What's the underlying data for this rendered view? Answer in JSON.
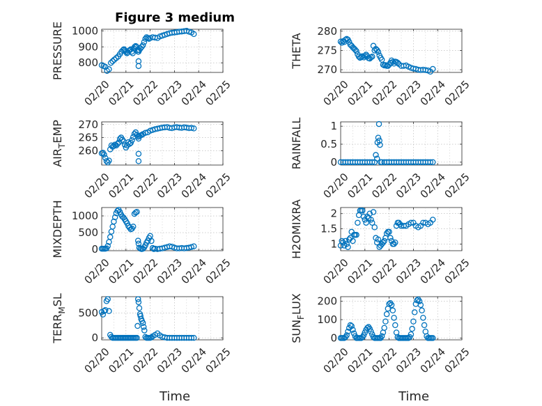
{
  "figure": {
    "title": "Figure 3 medium",
    "marker_color": "#0072BD"
  },
  "chart_data": [
    {
      "type": "scatter",
      "id": "pressure",
      "ylabel": "PRESSURE",
      "ylabel_main": "PRESSURE",
      "ylabel_sub": "",
      "ylabel_tail": "",
      "title": "Figure 3 medium",
      "xlim": [
        "02/20",
        "02/25"
      ],
      "xticks": [
        "02/20",
        "02/21",
        "02/22",
        "02/23",
        "02/24",
        "02/25"
      ],
      "ylim": [
        740,
        1010
      ],
      "yticks": [
        800,
        900,
        1000
      ],
      "grid": true,
      "x": [
        0,
        0.08,
        0.15,
        0.22,
        0.3,
        0.38,
        0.45,
        0.52,
        0.6,
        0.68,
        0.75,
        0.82,
        0.88,
        0.92,
        0.96,
        1.0,
        1.04,
        1.08,
        1.12,
        1.16,
        1.2,
        1.24,
        1.28,
        1.32,
        1.36,
        1.4,
        1.44,
        1.48,
        1.5,
        1.52,
        1.52,
        1.52,
        1.55,
        1.6,
        1.65,
        1.7,
        1.75,
        1.8,
        1.85,
        1.9,
        1.95,
        2.0,
        2.1,
        2.2,
        2.3,
        2.4,
        2.5,
        2.6,
        2.7,
        2.8,
        2.9,
        3.0,
        3.1,
        3.2,
        3.3,
        3.4,
        3.5,
        3.6,
        3.7,
        3.8
      ],
      "y": [
        785,
        780,
        775,
        750,
        760,
        800,
        810,
        820,
        830,
        840,
        855,
        870,
        880,
        885,
        878,
        870,
        860,
        865,
        875,
        880,
        885,
        870,
        860,
        890,
        900,
        905,
        900,
        880,
        870,
        780,
        810,
        870,
        880,
        890,
        900,
        910,
        930,
        950,
        960,
        955,
        950,
        955,
        960,
        958,
        955,
        965,
        970,
        975,
        980,
        985,
        988,
        990,
        992,
        995,
        996,
        998,
        1000,
        995,
        990,
        980
      ]
    },
    {
      "type": "scatter",
      "id": "theta",
      "ylabel": "THETA",
      "ylabel_main": "THETA",
      "ylabel_sub": "",
      "ylabel_tail": "",
      "xlim": [
        "02/20",
        "02/25"
      ],
      "xticks": [
        "02/20",
        "02/21",
        "02/22",
        "02/23",
        "02/24",
        "02/25"
      ],
      "ylim": [
        269.3,
        280.5
      ],
      "yticks": [
        270,
        275,
        280
      ],
      "grid": true,
      "x": [
        0,
        0.05,
        0.1,
        0.15,
        0.2,
        0.25,
        0.3,
        0.35,
        0.4,
        0.45,
        0.5,
        0.55,
        0.6,
        0.65,
        0.7,
        0.75,
        0.8,
        0.85,
        0.9,
        0.95,
        1.0,
        1.05,
        1.1,
        1.15,
        1.2,
        1.25,
        1.3,
        1.35,
        1.4,
        1.45,
        1.5,
        1.55,
        1.6,
        1.65,
        1.7,
        1.75,
        1.8,
        1.85,
        1.9,
        1.95,
        2.0,
        2.05,
        2.1,
        2.15,
        2.2,
        2.25,
        2.3,
        2.35,
        2.4,
        2.5,
        2.6,
        2.7,
        2.8,
        2.9,
        3.0,
        3.1,
        3.2,
        3.3,
        3.4,
        3.5,
        3.6,
        3.7,
        3.8
      ],
      "y": [
        277.3,
        277.0,
        277.4,
        277.2,
        277.8,
        278.0,
        277.8,
        277.2,
        276.5,
        276.2,
        275.8,
        275.5,
        275.2,
        274.8,
        274.0,
        273.4,
        273.1,
        273.3,
        273.5,
        273.2,
        273.6,
        273.9,
        273.5,
        273.0,
        272.9,
        273.2,
        273.4,
        276.2,
        275.0,
        275.4,
        275.1,
        274.6,
        273.7,
        273.1,
        272.6,
        271.3,
        271.1,
        271.2,
        271.0,
        271.0,
        271.3,
        271.8,
        272.4,
        272.0,
        271.6,
        272.1,
        272.0,
        271.8,
        271.5,
        271.0,
        271.0,
        271.1,
        270.8,
        270.5,
        270.3,
        270.2,
        270.0,
        269.9,
        270.0,
        269.9,
        269.8,
        269.5,
        270.2
      ]
    },
    {
      "type": "scatter",
      "id": "air_temp",
      "ylabel": "AIR_TEMP",
      "ylabel_main": "AIR",
      "ylabel_sub": "T",
      "ylabel_tail": "EMP",
      "xlim": [
        "02/20",
        "02/25"
      ],
      "xticks": [
        "02/20",
        "02/21",
        "02/22",
        "02/23",
        "02/24",
        "02/25"
      ],
      "ylim": [
        254.5,
        271.0
      ],
      "yticks": [
        260,
        265,
        270
      ],
      "grid": true,
      "x": [
        0,
        0.05,
        0.1,
        0.15,
        0.2,
        0.25,
        0.3,
        0.35,
        0.4,
        0.45,
        0.5,
        0.55,
        0.6,
        0.65,
        0.7,
        0.75,
        0.8,
        0.85,
        0.9,
        0.95,
        1.0,
        1.05,
        1.1,
        1.15,
        1.2,
        1.25,
        1.3,
        1.35,
        1.4,
        1.45,
        1.5,
        1.52,
        1.52,
        1.52,
        1.55,
        1.6,
        1.65,
        1.7,
        1.8,
        1.9,
        2.0,
        2.1,
        2.2,
        2.3,
        2.4,
        2.5,
        2.6,
        2.7,
        2.8,
        2.9,
        3.0,
        3.1,
        3.2,
        3.3,
        3.4,
        3.5,
        3.6,
        3.7,
        3.8
      ],
      "y": [
        259.0,
        259.2,
        258.5,
        257.2,
        256.0,
        255.5,
        256.2,
        260.5,
        262.0,
        261.5,
        261.8,
        262.3,
        262.0,
        262.6,
        263.1,
        264.5,
        265.0,
        264.2,
        263.5,
        262.3,
        261.2,
        262.0,
        263.2,
        262.6,
        263.0,
        264.0,
        265.2,
        266.4,
        267.0,
        266.0,
        265.3,
        256.0,
        258.8,
        264.6,
        265.5,
        265.8,
        266.0,
        266.3,
        266.8,
        267.0,
        267.6,
        267.9,
        268.2,
        268.4,
        268.6,
        268.8,
        268.9,
        269.0,
        268.7,
        268.6,
        268.9,
        269.0,
        268.8,
        268.7,
        268.9,
        268.8,
        268.6,
        268.7,
        268.5
      ]
    },
    {
      "type": "scatter",
      "id": "rainfall",
      "ylabel": "RAINFALL",
      "ylabel_main": "RAINFALL",
      "ylabel_sub": "",
      "ylabel_tail": "",
      "xlim": [
        "02/20",
        "02/25"
      ],
      "xticks": [
        "02/20",
        "02/21",
        "02/22",
        "02/23",
        "02/24",
        "02/25"
      ],
      "ylim": [
        -0.08,
        1.12
      ],
      "yticks": [
        0,
        0.5,
        1
      ],
      "grid": true,
      "x": [
        0,
        0.1,
        0.2,
        0.3,
        0.4,
        0.5,
        0.6,
        0.7,
        0.8,
        0.9,
        1.0,
        1.1,
        1.2,
        1.3,
        1.4,
        1.45,
        1.5,
        1.52,
        1.55,
        1.58,
        1.6,
        1.62,
        1.65,
        1.7,
        1.8,
        1.9,
        2.0,
        2.1,
        2.2,
        2.3,
        2.4,
        2.5,
        2.6,
        2.7,
        2.8,
        2.9,
        3.0,
        3.1,
        3.2,
        3.3,
        3.4,
        3.5,
        3.6,
        3.7,
        3.8
      ],
      "y": [
        0,
        0,
        0,
        0,
        0,
        0,
        0,
        0,
        0,
        0,
        0,
        0,
        0,
        0,
        0,
        0.2,
        0.1,
        0.55,
        0.68,
        1.06,
        0.6,
        0.48,
        0,
        0,
        0,
        0,
        0,
        0,
        0,
        0,
        0,
        0,
        0,
        0,
        0,
        0,
        0,
        0,
        0,
        0,
        0,
        0,
        0,
        0,
        0
      ]
    },
    {
      "type": "scatter",
      "id": "mixdepth",
      "ylabel": "MIXDEPTH",
      "ylabel_main": "MIXDEPTH",
      "ylabel_sub": "",
      "ylabel_tail": "",
      "xlim": [
        "02/20",
        "02/25"
      ],
      "xticks": [
        "02/20",
        "02/21",
        "02/22",
        "02/23",
        "02/24",
        "02/25"
      ],
      "ylim": [
        -40,
        1250
      ],
      "yticks": [
        0,
        500,
        1000
      ],
      "grid": true,
      "x": [
        0,
        0.05,
        0.1,
        0.15,
        0.2,
        0.25,
        0.3,
        0.35,
        0.4,
        0.45,
        0.5,
        0.55,
        0.6,
        0.65,
        0.7,
        0.75,
        0.8,
        0.85,
        0.9,
        0.95,
        1.0,
        1.05,
        1.1,
        1.15,
        1.2,
        1.25,
        1.3,
        1.35,
        1.4,
        1.45,
        1.5,
        1.52,
        1.55,
        1.6,
        1.65,
        1.7,
        1.75,
        1.8,
        1.85,
        1.9,
        1.95,
        2.0,
        2.05,
        2.1,
        2.15,
        2.2,
        2.3,
        2.4,
        2.5,
        2.6,
        2.7,
        2.8,
        2.9,
        3.0,
        3.1,
        3.2,
        3.3,
        3.4,
        3.5,
        3.6,
        3.7,
        3.8
      ],
      "y": [
        20,
        20,
        20,
        20,
        30,
        100,
        220,
        370,
        530,
        680,
        830,
        960,
        1080,
        1150,
        1180,
        1120,
        1040,
        980,
        950,
        900,
        840,
        780,
        700,
        650,
        600,
        620,
        680,
        1060,
        1100,
        1120,
        260,
        170,
        50,
        20,
        10,
        20,
        60,
        120,
        200,
        260,
        340,
        400,
        250,
        40,
        10,
        20,
        10,
        20,
        30,
        50,
        70,
        90,
        80,
        50,
        30,
        30,
        40,
        30,
        40,
        50,
        70,
        90
      ]
    },
    {
      "type": "scatter",
      "id": "h2omixra",
      "ylabel": "H2OMIXRA",
      "ylabel_main": "H2OMIXRA",
      "ylabel_sub": "",
      "ylabel_tail": "",
      "xlim": [
        "02/20",
        "02/25"
      ],
      "xticks": [
        "02/20",
        "02/21",
        "02/22",
        "02/23",
        "02/24",
        "02/25"
      ],
      "ylim": [
        0.78,
        2.2
      ],
      "yticks": [
        1,
        1.5,
        2
      ],
      "grid": true,
      "x": [
        0,
        0.05,
        0.1,
        0.15,
        0.2,
        0.25,
        0.3,
        0.35,
        0.4,
        0.45,
        0.5,
        0.55,
        0.6,
        0.65,
        0.7,
        0.75,
        0.8,
        0.85,
        0.9,
        0.95,
        1.0,
        1.05,
        1.1,
        1.15,
        1.2,
        1.25,
        1.3,
        1.35,
        1.4,
        1.45,
        1.5,
        1.55,
        1.6,
        1.65,
        1.7,
        1.75,
        1.8,
        1.85,
        1.9,
        1.95,
        2.0,
        2.05,
        2.1,
        2.15,
        2.2,
        2.25,
        2.3,
        2.35,
        2.4,
        2.45,
        2.5,
        2.6,
        2.7,
        2.8,
        2.9,
        3.0,
        3.1,
        3.2,
        3.3,
        3.4,
        3.5,
        3.6,
        3.7,
        3.8
      ],
      "y": [
        0.95,
        1.1,
        1.05,
        0.95,
        1.1,
        1.0,
        0.9,
        1.15,
        1.2,
        1.4,
        1.1,
        1.3,
        1.3,
        1.3,
        1.7,
        1.95,
        2.1,
        2.1,
        2.1,
        1.9,
        1.8,
        1.7,
        1.9,
        1.85,
        2.0,
        1.8,
        1.7,
        2.05,
        1.55,
        1.2,
        1.05,
        1.15,
        0.9,
        0.95,
        1.0,
        1.05,
        1.1,
        1.2,
        1.35,
        1.4,
        1.4,
        1.2,
        1.1,
        1.0,
        1.0,
        1.05,
        1.6,
        1.7,
        1.7,
        1.65,
        1.6,
        1.6,
        1.6,
        1.65,
        1.7,
        1.7,
        1.6,
        1.55,
        1.6,
        1.7,
        1.7,
        1.65,
        1.7,
        1.8
      ]
    },
    {
      "type": "scatter",
      "id": "terr_msl",
      "ylabel": "TERR_MSL",
      "ylabel_main": "TERR",
      "ylabel_sub": "M",
      "ylabel_tail": "SL",
      "xlim": [
        "02/20",
        "02/25"
      ],
      "xticks": [
        "02/20",
        "02/21",
        "02/22",
        "02/23",
        "02/24",
        "02/25"
      ],
      "ylim": [
        -40,
        830
      ],
      "yticks": [
        0,
        500
      ],
      "grid": true,
      "x": [
        0,
        0.05,
        0.1,
        0.15,
        0.2,
        0.25,
        0.3,
        0.35,
        0.4,
        0.45,
        0.5,
        0.55,
        0.6,
        0.65,
        0.7,
        0.75,
        0.8,
        0.85,
        0.9,
        0.95,
        1.0,
        1.05,
        1.1,
        1.15,
        1.2,
        1.25,
        1.3,
        1.35,
        1.4,
        1.45,
        1.48,
        1.5,
        1.52,
        1.55,
        1.58,
        1.6,
        1.63,
        1.66,
        1.7,
        1.73,
        1.76,
        1.8,
        1.85,
        1.9,
        1.95,
        2.0,
        2.05,
        2.1,
        2.2,
        2.3,
        2.4,
        2.5,
        2.6,
        2.7,
        2.8,
        2.9,
        3.0,
        3.1,
        3.2,
        3.3,
        3.4,
        3.5,
        3.6,
        3.7,
        3.8
      ],
      "y": [
        520,
        470,
        540,
        560,
        740,
        780,
        540,
        60,
        20,
        0,
        0,
        0,
        0,
        0,
        0,
        0,
        0,
        0,
        0,
        0,
        0,
        0,
        0,
        0,
        0,
        0,
        0,
        0,
        0,
        0,
        240,
        780,
        720,
        600,
        480,
        440,
        380,
        340,
        300,
        220,
        150,
        20,
        0,
        0,
        0,
        0,
        10,
        30,
        60,
        90,
        50,
        20,
        10,
        0,
        0,
        0,
        0,
        0,
        0,
        0,
        0,
        0,
        0,
        0,
        0
      ]
    },
    {
      "type": "scatter",
      "id": "sun_flux",
      "ylabel": "SUN_FLUX",
      "ylabel_main": "SUN",
      "ylabel_sub": "F",
      "ylabel_tail": "LUX",
      "xlim": [
        "02/20",
        "02/25"
      ],
      "xticks": [
        "02/20",
        "02/21",
        "02/22",
        "02/23",
        "02/24",
        "02/25"
      ],
      "ylim": [
        -10,
        225
      ],
      "yticks": [
        0,
        100,
        200
      ],
      "grid": true,
      "x": [
        0,
        0.05,
        0.1,
        0.15,
        0.2,
        0.25,
        0.3,
        0.35,
        0.4,
        0.45,
        0.5,
        0.55,
        0.6,
        0.65,
        0.7,
        0.75,
        0.8,
        0.85,
        0.9,
        0.95,
        1.0,
        1.05,
        1.1,
        1.15,
        1.2,
        1.25,
        1.3,
        1.35,
        1.4,
        1.45,
        1.5,
        1.55,
        1.6,
        1.65,
        1.7,
        1.75,
        1.8,
        1.85,
        1.9,
        1.95,
        2.0,
        2.05,
        2.1,
        2.15,
        2.2,
        2.25,
        2.3,
        2.35,
        2.4,
        2.45,
        2.5,
        2.55,
        2.6,
        2.65,
        2.7,
        2.75,
        2.8,
        2.85,
        2.9,
        2.95,
        3.0,
        3.05,
        3.1,
        3.15,
        3.2,
        3.25,
        3.3,
        3.35,
        3.4,
        3.45,
        3.5,
        3.55,
        3.6,
        3.65,
        3.7,
        3.75,
        3.8
      ],
      "y": [
        0,
        0,
        0,
        0,
        5,
        15,
        35,
        55,
        70,
        65,
        45,
        25,
        10,
        0,
        0,
        0,
        0,
        0,
        5,
        15,
        30,
        45,
        55,
        60,
        50,
        35,
        20,
        5,
        0,
        0,
        0,
        0,
        0,
        0,
        10,
        30,
        55,
        90,
        130,
        160,
        185,
        190,
        180,
        150,
        110,
        70,
        30,
        5,
        0,
        0,
        0,
        0,
        0,
        0,
        0,
        0,
        0,
        5,
        20,
        50,
        90,
        140,
        185,
        205,
        210,
        200,
        180,
        150,
        110,
        70,
        35,
        10,
        0,
        0,
        0,
        0,
        0
      ]
    }
  ],
  "xlabel_left": "Time",
  "xlabel_right": "Time"
}
